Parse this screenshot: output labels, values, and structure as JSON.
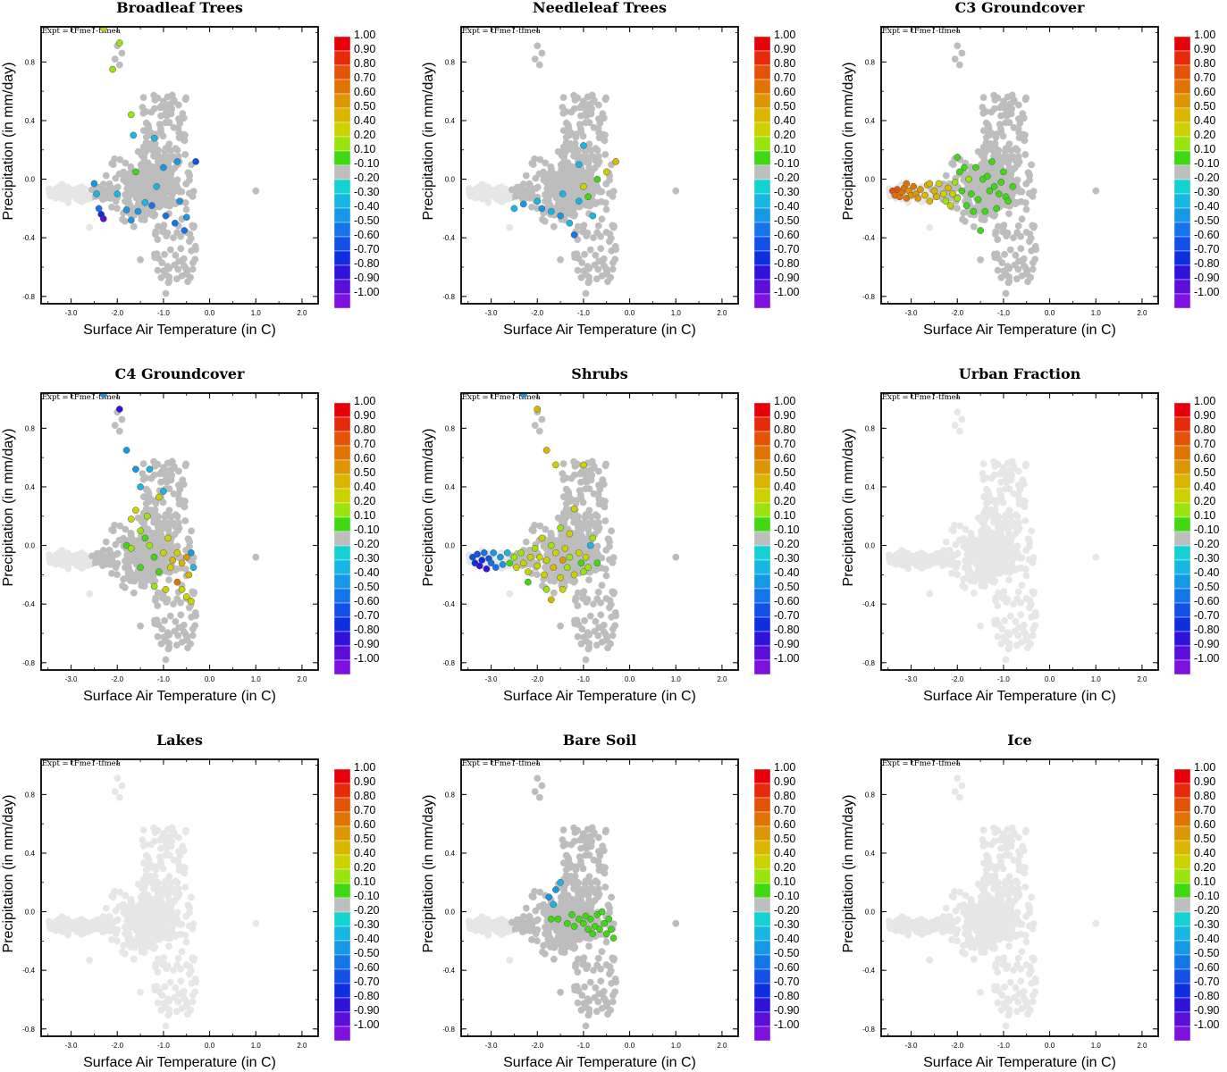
{
  "figure": {
    "expt_label": "Expt = tFme1-tfmea"
  },
  "axes": {
    "xlabel": "Surface Air Temperature (in C)",
    "ylabel": "Precipitation (in mm/day)",
    "xlim": [
      -3.65,
      2.35
    ],
    "ylim": [
      -0.85,
      1.04
    ],
    "xticks": [
      -3.0,
      -2.0,
      -1.0,
      0.0,
      1.0,
      2.0
    ],
    "xtick_labels": [
      "-3.0",
      "-2.0",
      "-1.0",
      "0.0",
      "1.0",
      "2.0"
    ],
    "yticks": [
      0.8,
      0.4,
      0.0,
      -0.4,
      -0.8
    ],
    "ytick_labels": [
      "0.8",
      "0.4",
      "0.0",
      "-0.4",
      "-0.8"
    ]
  },
  "colorbar": {
    "labels": [
      "1.00",
      "0.90",
      "0.80",
      "0.70",
      "0.60",
      "0.50",
      "0.40",
      "0.20",
      "0.10",
      "-0.10",
      "-0.20",
      "-0.30",
      "-0.40",
      "-0.50",
      "-0.60",
      "-0.70",
      "-0.80",
      "-0.90",
      "-1.00"
    ],
    "colors": [
      "#e8000b",
      "#e62b0a",
      "#e25308",
      "#df7405",
      "#dc9703",
      "#dab600",
      "#ccd100",
      "#9be30c",
      "#3fd913",
      "#bebebe",
      "#15d2d2",
      "#18b6e2",
      "#1698e6",
      "#1475ea",
      "#1250e8",
      "#0e2ee0",
      "#3012d8",
      "#5a0ed8",
      "#8010e0"
    ]
  },
  "chart_data": [
    {
      "type": "scatter",
      "title": "Broadleaf Trees",
      "highlights": [
        {
          "x": -2.3,
          "y": 1.03,
          "v": 0.3
        },
        {
          "x": -1.95,
          "y": 0.93,
          "v": 0.25
        },
        {
          "x": -2.1,
          "y": 0.75,
          "v": 0.2
        },
        {
          "x": -1.7,
          "y": 0.44,
          "v": 0.2
        },
        {
          "x": -1.65,
          "y": 0.3,
          "v": -0.25
        },
        {
          "x": -1.2,
          "y": 0.28,
          "v": -0.25
        },
        {
          "x": -1.6,
          "y": 0.05,
          "v": 0.15
        },
        {
          "x": -0.7,
          "y": 0.12,
          "v": -0.3
        },
        {
          "x": -0.3,
          "y": 0.12,
          "v": -0.55
        },
        {
          "x": -1.0,
          "y": 0.08,
          "v": -0.3
        },
        {
          "x": -2.5,
          "y": -0.03,
          "v": -0.3
        },
        {
          "x": -2.45,
          "y": -0.1,
          "v": -0.25
        },
        {
          "x": -2.4,
          "y": -0.2,
          "v": -0.45
        },
        {
          "x": -2.3,
          "y": -0.27,
          "v": -0.8
        },
        {
          "x": -2.35,
          "y": -0.24,
          "v": -0.65
        },
        {
          "x": -1.8,
          "y": -0.21,
          "v": -0.35
        },
        {
          "x": -1.7,
          "y": -0.28,
          "v": -0.35
        },
        {
          "x": -1.55,
          "y": -0.22,
          "v": -0.3
        },
        {
          "x": -1.4,
          "y": -0.16,
          "v": -0.25
        },
        {
          "x": -1.25,
          "y": -0.18,
          "v": -0.45
        },
        {
          "x": -0.95,
          "y": -0.25,
          "v": -0.4
        },
        {
          "x": -0.75,
          "y": -0.3,
          "v": -0.4
        },
        {
          "x": -0.5,
          "y": -0.26,
          "v": -0.3
        },
        {
          "x": -0.55,
          "y": -0.35,
          "v": -0.45
        },
        {
          "x": -0.65,
          "y": -0.15,
          "v": -0.3
        },
        {
          "x": -1.15,
          "y": -0.05,
          "v": -0.2
        },
        {
          "x": -2.0,
          "y": -0.1,
          "v": -0.25
        }
      ]
    },
    {
      "type": "scatter",
      "title": "Needleleaf Trees",
      "highlights": [
        {
          "x": -1.0,
          "y": 0.23,
          "v": -0.2
        },
        {
          "x": -1.1,
          "y": 0.1,
          "v": -0.25
        },
        {
          "x": -0.5,
          "y": 0.05,
          "v": 0.3
        },
        {
          "x": -0.3,
          "y": 0.12,
          "v": 0.4
        },
        {
          "x": -0.7,
          "y": 0.0,
          "v": 0.15
        },
        {
          "x": -1.0,
          "y": -0.05,
          "v": 0.35
        },
        {
          "x": -0.9,
          "y": -0.12,
          "v": 0.15
        },
        {
          "x": -2.3,
          "y": -0.17,
          "v": -0.3
        },
        {
          "x": -2.5,
          "y": -0.2,
          "v": -0.25
        },
        {
          "x": -1.9,
          "y": -0.2,
          "v": -0.3
        },
        {
          "x": -1.7,
          "y": -0.22,
          "v": -0.25
        },
        {
          "x": -1.5,
          "y": -0.25,
          "v": -0.3
        },
        {
          "x": -1.3,
          "y": -0.3,
          "v": -0.25
        },
        {
          "x": -1.2,
          "y": -0.38,
          "v": -0.4
        },
        {
          "x": -1.1,
          "y": -0.15,
          "v": -0.2
        },
        {
          "x": -0.8,
          "y": -0.25,
          "v": -0.2
        },
        {
          "x": -1.45,
          "y": -0.1,
          "v": -0.25
        },
        {
          "x": -2.0,
          "y": -0.15,
          "v": -0.2
        }
      ]
    },
    {
      "type": "scatter",
      "title": "C3 Groundcover",
      "highlights": [
        {
          "x": -3.4,
          "y": -0.08,
          "v": 0.7
        },
        {
          "x": -3.35,
          "y": -0.11,
          "v": 0.65
        },
        {
          "x": -3.3,
          "y": -0.07,
          "v": 0.7
        },
        {
          "x": -3.25,
          "y": -0.12,
          "v": 0.6
        },
        {
          "x": -3.2,
          "y": -0.09,
          "v": 0.65
        },
        {
          "x": -3.15,
          "y": -0.06,
          "v": 0.6
        },
        {
          "x": -3.1,
          "y": -0.13,
          "v": 0.6
        },
        {
          "x": -3.05,
          "y": -0.08,
          "v": 0.55
        },
        {
          "x": -3.0,
          "y": -0.11,
          "v": 0.55
        },
        {
          "x": -2.95,
          "y": -0.05,
          "v": 0.6
        },
        {
          "x": -2.9,
          "y": -0.1,
          "v": 0.5
        },
        {
          "x": -2.85,
          "y": -0.13,
          "v": 0.55
        },
        {
          "x": -2.8,
          "y": -0.07,
          "v": 0.5
        },
        {
          "x": -2.7,
          "y": -0.11,
          "v": 0.45
        },
        {
          "x": -2.65,
          "y": -0.04,
          "v": 0.45
        },
        {
          "x": -2.6,
          "y": -0.15,
          "v": 0.4
        },
        {
          "x": -2.5,
          "y": -0.08,
          "v": 0.45
        },
        {
          "x": -2.45,
          "y": -0.12,
          "v": 0.4
        },
        {
          "x": -2.4,
          "y": -0.03,
          "v": 0.35
        },
        {
          "x": -2.3,
          "y": -0.1,
          "v": 0.35
        },
        {
          "x": -2.25,
          "y": -0.15,
          "v": 0.25
        },
        {
          "x": -2.2,
          "y": -0.06,
          "v": 0.4
        },
        {
          "x": -2.1,
          "y": -0.1,
          "v": 0.3
        },
        {
          "x": -2.05,
          "y": -0.02,
          "v": 0.2
        },
        {
          "x": -2.0,
          "y": -0.13,
          "v": 0.2
        },
        {
          "x": -1.95,
          "y": 0.05,
          "v": 0.15
        },
        {
          "x": -1.9,
          "y": -0.08,
          "v": 0.15
        },
        {
          "x": -1.8,
          "y": -0.18,
          "v": 0.15
        },
        {
          "x": -1.75,
          "y": 0.0,
          "v": 0.2
        },
        {
          "x": -1.7,
          "y": -0.1,
          "v": 0.15
        },
        {
          "x": -1.6,
          "y": 0.08,
          "v": 0.15
        },
        {
          "x": -1.55,
          "y": -0.14,
          "v": 0.15
        },
        {
          "x": -1.45,
          "y": 0.0,
          "v": 0.15
        },
        {
          "x": -1.4,
          "y": -0.22,
          "v": 0.15
        },
        {
          "x": -1.35,
          "y": 0.02,
          "v": 0.15
        },
        {
          "x": -1.3,
          "y": -0.08,
          "v": 0.15
        },
        {
          "x": -1.25,
          "y": 0.12,
          "v": 0.15
        },
        {
          "x": -1.2,
          "y": -0.05,
          "v": 0.15
        },
        {
          "x": -1.1,
          "y": -0.1,
          "v": 0.15
        },
        {
          "x": -1.05,
          "y": -0.02,
          "v": 0.15
        },
        {
          "x": -1.0,
          "y": 0.05,
          "v": 0.15
        },
        {
          "x": -0.95,
          "y": -0.12,
          "v": 0.15
        },
        {
          "x": -0.9,
          "y": -0.15,
          "v": 0.15
        },
        {
          "x": -1.5,
          "y": -0.35,
          "v": 0.15
        },
        {
          "x": -2.0,
          "y": 0.15,
          "v": 0.15
        },
        {
          "x": -1.85,
          "y": 0.08,
          "v": 0.15
        },
        {
          "x": -2.6,
          "y": -0.03,
          "v": 0.4
        },
        {
          "x": -3.1,
          "y": -0.03,
          "v": 0.6
        },
        {
          "x": -2.15,
          "y": -0.18,
          "v": 0.3
        },
        {
          "x": -1.65,
          "y": -0.22,
          "v": 0.15
        },
        {
          "x": -1.15,
          "y": -0.2,
          "v": 0.15
        },
        {
          "x": -0.8,
          "y": -0.05,
          "v": 0.15
        }
      ]
    },
    {
      "type": "scatter",
      "title": "C4 Groundcover",
      "highlights": [
        {
          "x": -2.3,
          "y": 1.03,
          "v": -0.35
        },
        {
          "x": -1.95,
          "y": 0.93,
          "v": -0.75
        },
        {
          "x": -1.8,
          "y": 0.65,
          "v": -0.3
        },
        {
          "x": -1.6,
          "y": 0.52,
          "v": -0.3
        },
        {
          "x": -1.3,
          "y": 0.52,
          "v": -0.25
        },
        {
          "x": -1.5,
          "y": 0.4,
          "v": -0.25
        },
        {
          "x": -1.0,
          "y": 0.37,
          "v": -0.2
        },
        {
          "x": -1.1,
          "y": 0.33,
          "v": 0.3
        },
        {
          "x": -1.6,
          "y": 0.24,
          "v": 0.35
        },
        {
          "x": -1.7,
          "y": 0.18,
          "v": 0.3
        },
        {
          "x": -1.5,
          "y": 0.1,
          "v": 0.25
        },
        {
          "x": -1.4,
          "y": 0.05,
          "v": 0.15
        },
        {
          "x": -1.8,
          "y": 0.0,
          "v": 0.15
        },
        {
          "x": -1.7,
          "y": -0.02,
          "v": 0.25
        },
        {
          "x": -1.3,
          "y": 0.0,
          "v": 0.2
        },
        {
          "x": -1.2,
          "y": -0.08,
          "v": 0.15
        },
        {
          "x": -1.0,
          "y": -0.05,
          "v": 0.3
        },
        {
          "x": -0.9,
          "y": 0.05,
          "v": 0.35
        },
        {
          "x": -0.8,
          "y": -0.1,
          "v": 0.4
        },
        {
          "x": -0.7,
          "y": -0.05,
          "v": 0.35
        },
        {
          "x": -0.6,
          "y": -0.12,
          "v": 0.45
        },
        {
          "x": -0.5,
          "y": -0.08,
          "v": 0.5
        },
        {
          "x": -0.45,
          "y": -0.2,
          "v": 0.4
        },
        {
          "x": -0.7,
          "y": -0.25,
          "v": 0.65
        },
        {
          "x": -0.6,
          "y": -0.3,
          "v": 0.3
        },
        {
          "x": -0.5,
          "y": -0.35,
          "v": 0.35
        },
        {
          "x": -0.4,
          "y": -0.38,
          "v": 0.3
        },
        {
          "x": -1.1,
          "y": -0.18,
          "v": 0.15
        },
        {
          "x": -1.2,
          "y": -0.28,
          "v": 0.2
        },
        {
          "x": -0.95,
          "y": -0.3,
          "v": 0.3
        },
        {
          "x": -1.5,
          "y": -0.15,
          "v": 0.15
        },
        {
          "x": -0.85,
          "y": -0.15,
          "v": 0.35
        },
        {
          "x": -0.4,
          "y": -0.05,
          "v": -0.3
        },
        {
          "x": -0.35,
          "y": -0.15,
          "v": -0.25
        },
        {
          "x": -1.35,
          "y": 0.2,
          "v": 0.25
        }
      ]
    },
    {
      "type": "scatter",
      "title": "Shrubs",
      "highlights": [
        {
          "x": -2.3,
          "y": 1.03,
          "v": -0.3
        },
        {
          "x": -2.0,
          "y": 0.93,
          "v": 0.4
        },
        {
          "x": -1.8,
          "y": 0.65,
          "v": 0.4
        },
        {
          "x": -1.6,
          "y": 0.55,
          "v": 0.3
        },
        {
          "x": -1.0,
          "y": 0.55,
          "v": 0.3
        },
        {
          "x": -1.2,
          "y": 0.25,
          "v": 0.3
        },
        {
          "x": -1.5,
          "y": 0.12,
          "v": 0.2
        },
        {
          "x": -1.3,
          "y": 0.08,
          "v": 0.3
        },
        {
          "x": -0.8,
          "y": 0.05,
          "v": 0.25
        },
        {
          "x": -3.4,
          "y": -0.08,
          "v": -0.55
        },
        {
          "x": -3.35,
          "y": -0.12,
          "v": -0.65
        },
        {
          "x": -3.3,
          "y": -0.06,
          "v": -0.5
        },
        {
          "x": -3.25,
          "y": -0.14,
          "v": -0.7
        },
        {
          "x": -3.2,
          "y": -0.1,
          "v": -0.6
        },
        {
          "x": -3.15,
          "y": -0.05,
          "v": -0.45
        },
        {
          "x": -3.1,
          "y": -0.16,
          "v": -0.75
        },
        {
          "x": -3.05,
          "y": -0.09,
          "v": -0.5
        },
        {
          "x": -3.0,
          "y": -0.12,
          "v": -0.4
        },
        {
          "x": -2.95,
          "y": -0.05,
          "v": -0.35
        },
        {
          "x": -2.9,
          "y": -0.15,
          "v": -0.45
        },
        {
          "x": -2.8,
          "y": -0.08,
          "v": -0.3
        },
        {
          "x": -2.75,
          "y": -0.13,
          "v": -0.3
        },
        {
          "x": -2.65,
          "y": -0.05,
          "v": -0.25
        },
        {
          "x": -2.6,
          "y": -0.12,
          "v": 0.15
        },
        {
          "x": -2.5,
          "y": -0.08,
          "v": 0.2
        },
        {
          "x": -2.45,
          "y": -0.15,
          "v": 0.3
        },
        {
          "x": -2.35,
          "y": -0.05,
          "v": 0.25
        },
        {
          "x": -2.3,
          "y": -0.12,
          "v": 0.3
        },
        {
          "x": -2.2,
          "y": -0.18,
          "v": 0.35
        },
        {
          "x": -2.15,
          "y": -0.08,
          "v": 0.3
        },
        {
          "x": -2.05,
          "y": -0.02,
          "v": 0.25
        },
        {
          "x": -2.0,
          "y": -0.14,
          "v": 0.35
        },
        {
          "x": -1.95,
          "y": -0.08,
          "v": 0.3
        },
        {
          "x": -1.85,
          "y": -0.2,
          "v": 0.35
        },
        {
          "x": -1.8,
          "y": -0.1,
          "v": 0.3
        },
        {
          "x": -1.7,
          "y": 0.0,
          "v": 0.2
        },
        {
          "x": -1.65,
          "y": -0.15,
          "v": 0.4
        },
        {
          "x": -1.6,
          "y": -0.05,
          "v": 0.3
        },
        {
          "x": -1.5,
          "y": -0.22,
          "v": 0.35
        },
        {
          "x": -1.45,
          "y": -0.1,
          "v": 0.5
        },
        {
          "x": -1.4,
          "y": -0.02,
          "v": 0.3
        },
        {
          "x": -1.35,
          "y": -0.15,
          "v": 0.25
        },
        {
          "x": -1.3,
          "y": -0.08,
          "v": 0.2
        },
        {
          "x": -1.2,
          "y": -0.2,
          "v": 0.3
        },
        {
          "x": -1.1,
          "y": -0.05,
          "v": 0.35
        },
        {
          "x": -1.05,
          "y": -0.12,
          "v": 0.15
        },
        {
          "x": -1.0,
          "y": -0.18,
          "v": 0.25
        },
        {
          "x": -0.95,
          "y": -0.08,
          "v": 0.3
        },
        {
          "x": -0.9,
          "y": -0.15,
          "v": 0.2
        },
        {
          "x": -0.85,
          "y": 0.0,
          "v": -0.2
        },
        {
          "x": -0.7,
          "y": -0.12,
          "v": 0.15
        },
        {
          "x": -1.45,
          "y": -0.3,
          "v": 0.3
        },
        {
          "x": -1.7,
          "y": -0.37,
          "v": 0.4
        },
        {
          "x": -1.8,
          "y": -0.3,
          "v": 0.2
        },
        {
          "x": -2.2,
          "y": -0.25,
          "v": 0.15
        },
        {
          "x": -1.9,
          "y": 0.05,
          "v": 0.3
        }
      ]
    },
    {
      "type": "scatter",
      "title": "Urban Fraction",
      "highlights": []
    },
    {
      "type": "scatter",
      "title": "Lakes",
      "highlights": []
    },
    {
      "type": "scatter",
      "title": "Bare Soil",
      "highlights": [
        {
          "x": -1.5,
          "y": 0.2,
          "v": -0.25
        },
        {
          "x": -1.6,
          "y": 0.15,
          "v": -0.3
        },
        {
          "x": -1.75,
          "y": 0.1,
          "v": -0.35
        },
        {
          "x": -1.65,
          "y": 0.05,
          "v": -0.2
        },
        {
          "x": -1.7,
          "y": -0.05,
          "v": 0.15
        },
        {
          "x": -1.55,
          "y": -0.05,
          "v": 0.15
        },
        {
          "x": -1.35,
          "y": -0.08,
          "v": 0.15
        },
        {
          "x": -1.2,
          "y": -0.1,
          "v": 0.15
        },
        {
          "x": -1.1,
          "y": -0.05,
          "v": 0.15
        },
        {
          "x": -1.0,
          "y": -0.08,
          "v": 0.15
        },
        {
          "x": -0.9,
          "y": -0.12,
          "v": 0.15
        },
        {
          "x": -0.85,
          "y": -0.05,
          "v": 0.15
        },
        {
          "x": -0.75,
          "y": -0.1,
          "v": 0.15
        },
        {
          "x": -0.7,
          "y": -0.02,
          "v": 0.15
        },
        {
          "x": -0.65,
          "y": -0.12,
          "v": 0.15
        },
        {
          "x": -0.55,
          "y": -0.08,
          "v": 0.15
        },
        {
          "x": -0.5,
          "y": -0.15,
          "v": 0.15
        },
        {
          "x": -0.45,
          "y": -0.05,
          "v": 0.15
        },
        {
          "x": -0.4,
          "y": -0.12,
          "v": 0.15
        },
        {
          "x": -0.35,
          "y": -0.18,
          "v": 0.15
        },
        {
          "x": -0.6,
          "y": 0.0,
          "v": 0.15
        },
        {
          "x": -0.8,
          "y": -0.15,
          "v": 0.15
        },
        {
          "x": -0.95,
          "y": -0.03,
          "v": 0.15
        },
        {
          "x": -1.25,
          "y": -0.02,
          "v": 0.15
        }
      ]
    },
    {
      "type": "scatter",
      "title": "Ice",
      "highlights": []
    }
  ]
}
